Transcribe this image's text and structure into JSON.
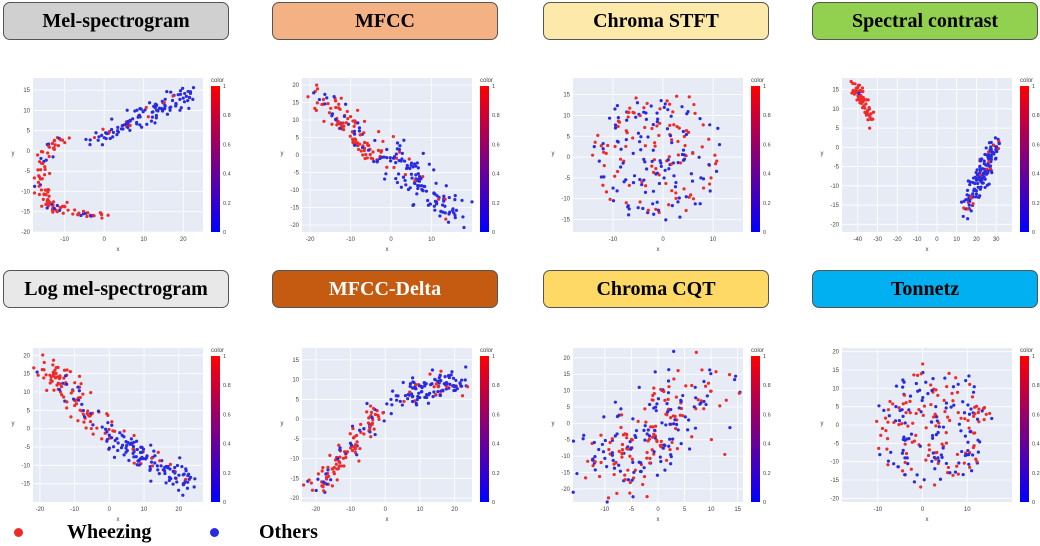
{
  "colors": {
    "wheezing": "#ee2b2b",
    "others": "#2a2ae0",
    "plot_bg": "#e6ebf5",
    "grid": "#ffffff"
  },
  "legend": {
    "wheezing_label": "Wheezing",
    "others_label": "Others"
  },
  "chart_data": [
    {
      "type": "scatter",
      "title": "Mel-spectrogram",
      "title_bg": "#d0d0d0",
      "xlabel": "x",
      "ylabel": "y",
      "xlim": [
        -18,
        25
      ],
      "ylim": [
        -20,
        18
      ],
      "xticks": [
        -10,
        0,
        10,
        20
      ],
      "yticks": [
        -20,
        -15,
        -10,
        -5,
        0,
        5,
        10,
        15
      ],
      "colorbar": {
        "title": "color",
        "ticks": [
          "0",
          "0.2",
          "0.4",
          "0.6",
          "0.8",
          "1"
        ]
      },
      "clusters": [
        {
          "kind": "arc",
          "cx": -9,
          "cy": -6,
          "r": 7,
          "ry": 9,
          "a0": 1.6,
          "a1": 4.7,
          "n": 90,
          "spread": 1.6,
          "pr": 0.85
        },
        {
          "kind": "band",
          "x0": -7,
          "y0": -16,
          "x1": 0,
          "y1": -16,
          "n": 20,
          "spread": 1,
          "pr": 0.6
        },
        {
          "kind": "band",
          "x0": -2,
          "y0": 3,
          "x1": 22,
          "y1": 14,
          "n": 120,
          "spread": 2.2,
          "pr": 0.05
        }
      ]
    },
    {
      "type": "scatter",
      "title": "MFCC",
      "title_bg": "#f4b183",
      "xlabel": "x",
      "ylabel": "y",
      "xlim": [
        -22,
        20
      ],
      "ylim": [
        -22,
        22
      ],
      "xticks": [
        -20,
        -10,
        0,
        10
      ],
      "yticks": [
        -20,
        -15,
        -10,
        -5,
        0,
        5,
        10,
        15,
        20
      ],
      "colorbar": {
        "title": "color",
        "ticks": [
          "0",
          "0.2",
          "0.4",
          "0.6",
          "0.8",
          "1"
        ]
      },
      "clusters": [
        {
          "kind": "band",
          "x0": -19,
          "y0": 18,
          "x1": -4,
          "y1": 0,
          "n": 110,
          "spread": 3,
          "pr": 0.85
        },
        {
          "kind": "band",
          "x0": -2,
          "y0": 2,
          "x1": 16,
          "y1": -17,
          "n": 130,
          "spread": 4,
          "pr": 0.06
        }
      ]
    },
    {
      "type": "scatter",
      "title": "Chroma STFT",
      "title_bg": "#fde9a9",
      "xlabel": "x",
      "ylabel": "y",
      "xlim": [
        -18,
        16
      ],
      "ylim": [
        -18,
        19
      ],
      "xticks": [
        -10,
        0,
        10
      ],
      "yticks": [
        -15,
        -10,
        -5,
        0,
        5,
        10,
        15
      ],
      "colorbar": {
        "title": "color",
        "ticks": [
          "0",
          "0.2",
          "0.4",
          "0.6",
          "0.8",
          "1"
        ]
      },
      "clusters": [
        {
          "kind": "ring",
          "cx": -1,
          "cy": 0,
          "r": 13,
          "ry": 15,
          "n": 220,
          "spread": 4,
          "pr": 0.4
        }
      ]
    },
    {
      "type": "scatter",
      "title": "Spectral contrast",
      "title_bg": "#92d050",
      "xlabel": "x",
      "ylabel": "y",
      "xlim": [
        -48,
        38
      ],
      "ylim": [
        -22,
        18
      ],
      "xticks": [
        -40,
        -30,
        -20,
        -10,
        0,
        10,
        20,
        30
      ],
      "yticks": [
        -20,
        -15,
        -10,
        -5,
        0,
        5,
        10,
        15
      ],
      "colorbar": {
        "title": "color",
        "ticks": [
          "0",
          "0.2",
          "0.4",
          "0.6",
          "0.8",
          "1"
        ]
      },
      "clusters": [
        {
          "kind": "band",
          "x0": -42,
          "y0": 16,
          "x1": -33,
          "y1": 7,
          "n": 70,
          "spread": 2,
          "pr": 0.9
        },
        {
          "kind": "band",
          "x0": 30,
          "y0": 1,
          "x1": 15,
          "y1": -16,
          "n": 150,
          "spread": 3,
          "pr": 0.08
        }
      ]
    },
    {
      "type": "scatter",
      "title": "Log mel-spectrogram",
      "title_bg": "#e8e8e8",
      "xlabel": "x",
      "ylabel": "y",
      "xlim": [
        -22,
        27
      ],
      "ylim": [
        -20,
        22
      ],
      "xticks": [
        -20,
        -10,
        0,
        10,
        20
      ],
      "yticks": [
        -15,
        -10,
        -5,
        0,
        5,
        10,
        15,
        20
      ],
      "colorbar": {
        "title": "color",
        "ticks": [
          "0",
          "0.2",
          "0.4",
          "0.6",
          "0.8",
          "1"
        ]
      },
      "clusters": [
        {
          "kind": "band",
          "x0": -18,
          "y0": 17,
          "x1": 0,
          "y1": -2,
          "n": 110,
          "spread": 3.5,
          "pr": 0.85
        },
        {
          "kind": "band",
          "x0": 0,
          "y0": -2,
          "x1": 24,
          "y1": -15,
          "n": 130,
          "spread": 3.2,
          "pr": 0.08
        }
      ]
    },
    {
      "type": "scatter",
      "title": "MFCC-Delta",
      "title_bg": "#c55a11",
      "title_color": "#ffffff",
      "xlabel": "x",
      "ylabel": "y",
      "xlim": [
        -24,
        25
      ],
      "ylim": [
        -21,
        18
      ],
      "xticks": [
        -20,
        -10,
        0,
        10,
        20
      ],
      "yticks": [
        -20,
        -15,
        -10,
        -5,
        0,
        5,
        10,
        15
      ],
      "colorbar": {
        "title": "color",
        "ticks": [
          "0",
          "0.2",
          "0.4",
          "0.6",
          "0.8",
          "1"
        ]
      },
      "clusters": [
        {
          "kind": "band",
          "x0": -20,
          "y0": -18,
          "x1": -2,
          "y1": 2,
          "n": 120,
          "spread": 3,
          "pr": 0.75
        },
        {
          "kind": "band",
          "x0": 2,
          "y0": 5,
          "x1": 22,
          "y1": 10,
          "n": 120,
          "spread": 3,
          "pr": 0.15
        }
      ]
    },
    {
      "type": "scatter",
      "title": "Chroma CQT",
      "title_bg": "#ffd966",
      "xlabel": "x",
      "ylabel": "y",
      "xlim": [
        -16,
        16
      ],
      "ylim": [
        -24,
        23
      ],
      "xticks": [
        -10,
        -5,
        0,
        5,
        10,
        15
      ],
      "yticks": [
        -20,
        -15,
        -10,
        -5,
        0,
        5,
        10,
        15,
        20
      ],
      "colorbar": {
        "title": "color",
        "ticks": [
          "0",
          "0.2",
          "0.4",
          "0.6",
          "0.8",
          "1"
        ]
      },
      "clusters": [
        {
          "kind": "band",
          "x0": -10,
          "y0": -16,
          "x1": 10,
          "y1": 14,
          "n": 250,
          "spread": 8,
          "pr": 0.45
        }
      ]
    },
    {
      "type": "scatter",
      "title": "Tonnetz",
      "title_bg": "#00b0f0",
      "xlabel": "x",
      "ylabel": "y",
      "xlim": [
        -18,
        20
      ],
      "ylim": [
        -21,
        21
      ],
      "xticks": [
        -10,
        0,
        10
      ],
      "yticks": [
        -20,
        -15,
        -10,
        -5,
        0,
        5,
        10,
        15,
        20
      ],
      "colorbar": {
        "title": "color",
        "ticks": [
          "0",
          "0.2",
          "0.4",
          "0.6",
          "0.8",
          "1"
        ]
      },
      "clusters": [
        {
          "kind": "ring",
          "cx": 2,
          "cy": 0,
          "r": 13,
          "ry": 16,
          "n": 230,
          "spread": 5,
          "pr": 0.5
        }
      ]
    }
  ]
}
